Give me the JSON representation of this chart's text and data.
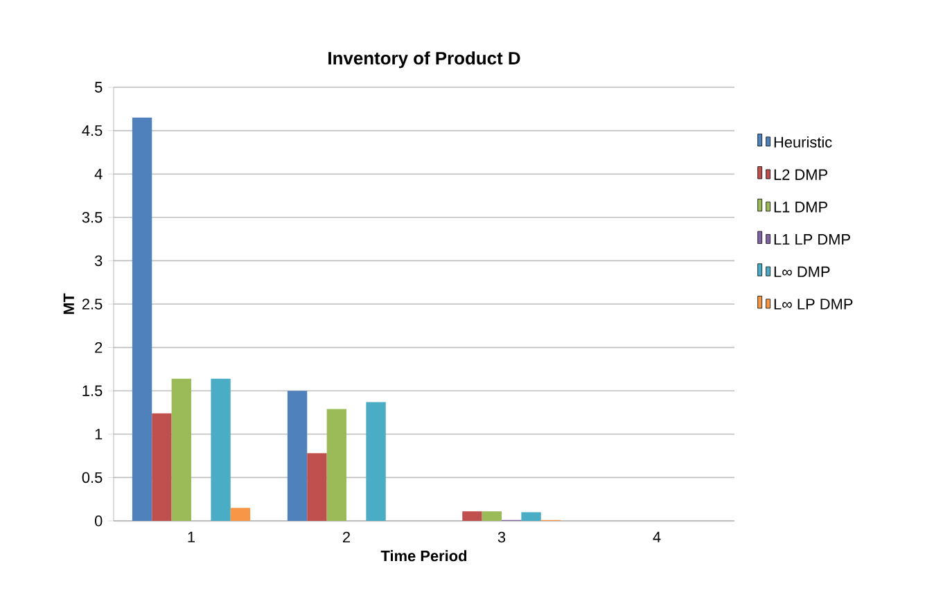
{
  "chart_data": {
    "type": "bar",
    "title": "Inventory of Product D",
    "xlabel": "Time Period",
    "ylabel": "MT",
    "categories": [
      "1",
      "2",
      "3",
      "4"
    ],
    "series": [
      {
        "name": "Heuristic",
        "color": "#4f81bd",
        "values": [
          4.65,
          1.5,
          0,
          0
        ]
      },
      {
        "name": "L2 DMP",
        "color": "#c0504d",
        "values": [
          1.24,
          0.78,
          0.11,
          0
        ]
      },
      {
        "name": "L1 DMP",
        "color": "#9bbb59",
        "values": [
          1.64,
          1.29,
          0.11,
          0
        ]
      },
      {
        "name": "L1 LP DMP",
        "color": "#8064a2",
        "values": [
          0,
          0,
          0.01,
          0
        ]
      },
      {
        "name": "L∞ DMP",
        "color": "#4bacc6",
        "values": [
          1.64,
          1.37,
          0.1,
          0
        ]
      },
      {
        "name": "L∞ LP DMP",
        "color": "#f79646",
        "values": [
          0.15,
          0,
          0.01,
          0
        ]
      }
    ],
    "ylim": [
      0,
      5
    ],
    "yticks": [
      0,
      0.5,
      1,
      1.5,
      2,
      2.5,
      3,
      3.5,
      4,
      4.5,
      5
    ],
    "grid": "y",
    "legend": "right"
  }
}
